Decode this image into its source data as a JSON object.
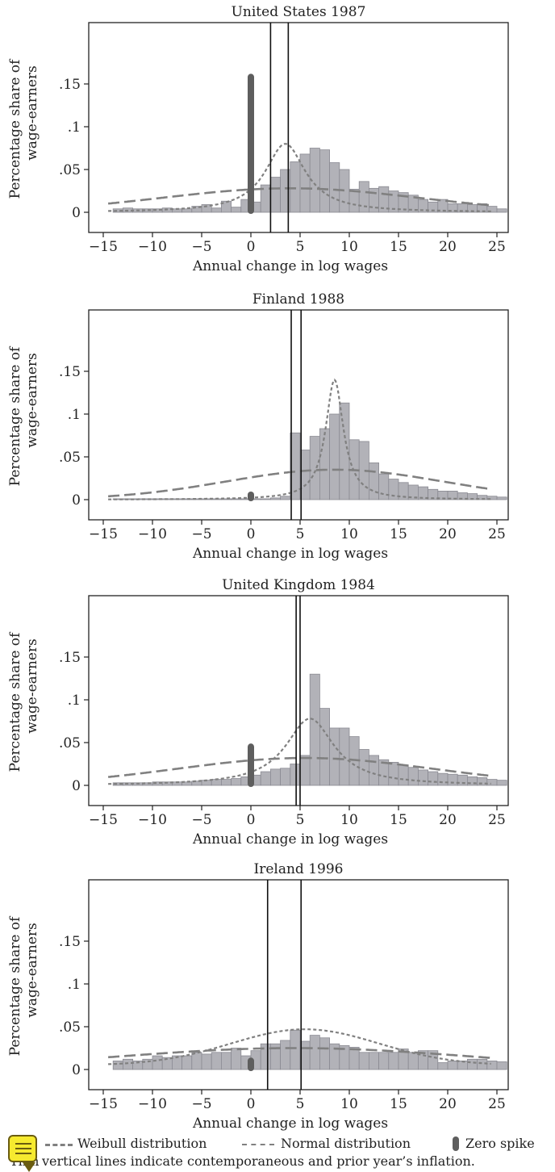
{
  "chart_data": [
    {
      "type": "bar",
      "title": "United States 1987",
      "xlabel": "Annual change in log wages",
      "ylabel": "Percentage share of wage-earners",
      "xlim": [
        -15,
        25
      ],
      "ylim": [
        0,
        0.2
      ],
      "xticks": [
        "−15",
        "−10",
        "−5",
        "0",
        "5",
        "10",
        "15",
        "20",
        "25"
      ],
      "yticks": [
        ".15",
        ".1",
        ".05",
        "0"
      ],
      "bin_start": -14,
      "bin_width": 1,
      "values": [
        0.004,
        0.005,
        0.004,
        0.004,
        0.004,
        0.005,
        0.004,
        0.004,
        0.007,
        0.009,
        0.005,
        0.013,
        0.006,
        0.015,
        0.012,
        0.032,
        0.041,
        0.05,
        0.059,
        0.068,
        0.075,
        0.073,
        0.058,
        0.05,
        0.027,
        0.036,
        0.028,
        0.03,
        0.025,
        0.023,
        0.02,
        0.015,
        0.012,
        0.015,
        0.01,
        0.01,
        0.009,
        0.01,
        0.007,
        0.004
      ],
      "zero_spike": 0.16,
      "inflation_lines": [
        2.0,
        3.8
      ],
      "weibull": {
        "type": "cauchy",
        "center": 3.5,
        "peak": 0.08,
        "scale": 2.5,
        "baseline": 0
      },
      "normal": {
        "type": "gauss",
        "center": 4.0,
        "height": 0.028,
        "sigma": 13,
        "baseline": 0
      }
    },
    {
      "type": "bar",
      "title": "Finland 1988",
      "xlabel": "Annual change in log wages",
      "ylabel": "Percentage share of wage-earners",
      "xlim": [
        -15,
        25
      ],
      "ylim": [
        0,
        0.2
      ],
      "xticks": [
        "−15",
        "−10",
        "−5",
        "0",
        "5",
        "10",
        "15",
        "20",
        "25"
      ],
      "yticks": [
        ".15",
        ".1",
        ".05",
        "0"
      ],
      "bin_start": -14,
      "bin_width": 1,
      "values": [
        0.001,
        0.001,
        0.001,
        0.001,
        0.001,
        0.001,
        0.001,
        0.001,
        0.001,
        0.001,
        0.001,
        0.001,
        0.001,
        0.001,
        0.001,
        0.001,
        0.002,
        0.004,
        0.078,
        0.058,
        0.074,
        0.083,
        0.1,
        0.113,
        0.07,
        0.068,
        0.043,
        0.03,
        0.024,
        0.02,
        0.017,
        0.015,
        0.012,
        0.01,
        0.01,
        0.008,
        0.007,
        0.005,
        0.004,
        0.003
      ],
      "zero_spike": 0.004,
      "inflation_lines": [
        4.1,
        5.1
      ],
      "weibull": {
        "type": "cauchy",
        "center": 8.5,
        "peak": 0.14,
        "scale": 1.1,
        "baseline": 0
      },
      "normal": {
        "type": "gauss",
        "center": 8.5,
        "height": 0.035,
        "sigma": 11,
        "baseline": 0
      }
    },
    {
      "type": "bar",
      "title": "United Kingdom 1984",
      "xlabel": "Annual change in log wages",
      "ylabel": "Percentage share of wage-earners",
      "xlim": [
        -15,
        25
      ],
      "ylim": [
        0,
        0.2
      ],
      "xticks": [
        "−15",
        "−10",
        "−5",
        "0",
        "5",
        "10",
        "15",
        "20",
        "25"
      ],
      "yticks": [
        ".15",
        ".1",
        ".05",
        "0"
      ],
      "bin_start": -14,
      "bin_width": 1,
      "values": [
        0.003,
        0.003,
        0.003,
        0.003,
        0.004,
        0.004,
        0.004,
        0.004,
        0.005,
        0.006,
        0.007,
        0.007,
        0.008,
        0.01,
        0.012,
        0.016,
        0.019,
        0.02,
        0.025,
        0.035,
        0.13,
        0.09,
        0.067,
        0.067,
        0.057,
        0.042,
        0.035,
        0.03,
        0.027,
        0.024,
        0.021,
        0.018,
        0.016,
        0.014,
        0.013,
        0.012,
        0.01,
        0.009,
        0.007,
        0.006
      ],
      "zero_spike": 0.047,
      "inflation_lines": [
        4.6,
        5.0
      ],
      "weibull": {
        "type": "cauchy",
        "center": 6.0,
        "peak": 0.078,
        "scale": 3.0,
        "baseline": 0
      },
      "normal": {
        "type": "gauss",
        "center": 5.5,
        "height": 0.032,
        "sigma": 13,
        "baseline": 0
      }
    },
    {
      "type": "bar",
      "title": "Ireland 1996",
      "xlabel": "Annual change in log wages",
      "ylabel": "Percentage share of wage-earners",
      "xlim": [
        -15,
        25
      ],
      "ylim": [
        0,
        0.2
      ],
      "xticks": [
        "−15",
        "−10",
        "−5",
        "0",
        "5",
        "10",
        "15",
        "20",
        "25"
      ],
      "yticks": [
        ".15",
        ".1",
        ".05",
        "0"
      ],
      "bin_start": -14,
      "bin_width": 1,
      "values": [
        0.01,
        0.012,
        0.01,
        0.012,
        0.016,
        0.014,
        0.016,
        0.016,
        0.02,
        0.018,
        0.02,
        0.02,
        0.025,
        0.016,
        0.022,
        0.03,
        0.03,
        0.034,
        0.046,
        0.033,
        0.04,
        0.037,
        0.03,
        0.028,
        0.026,
        0.02,
        0.02,
        0.02,
        0.02,
        0.024,
        0.02,
        0.022,
        0.022,
        0.008,
        0.01,
        0.01,
        0.012,
        0.012,
        0.01,
        0.009
      ],
      "zero_spike": 0.012,
      "inflation_lines": [
        1.7,
        5.1
      ],
      "weibull": {
        "type": "gauss",
        "center": 5.5,
        "height": 0.042,
        "sigma": 7.5,
        "baseline": 0.005
      },
      "normal": {
        "type": "gauss",
        "center": 4.5,
        "height": 0.025,
        "sigma": 18,
        "baseline": 0
      }
    }
  ],
  "legend": {
    "weibull_label": "Weibull distribution",
    "normal_label": "Normal distribution",
    "zero_spike_label": "Zero spike",
    "note": "vertical lines indicate contemporaneous and prior year’s inflation.",
    "note_prefix": "Thin"
  },
  "colors": {
    "bar_fill": "#b2b2b8",
    "bar_stroke": "#8a8a92",
    "curve": "#808080",
    "zero_spike": "#5e5e5e",
    "inflation_line": "#111111",
    "note_icon": "#f6ea2f"
  }
}
